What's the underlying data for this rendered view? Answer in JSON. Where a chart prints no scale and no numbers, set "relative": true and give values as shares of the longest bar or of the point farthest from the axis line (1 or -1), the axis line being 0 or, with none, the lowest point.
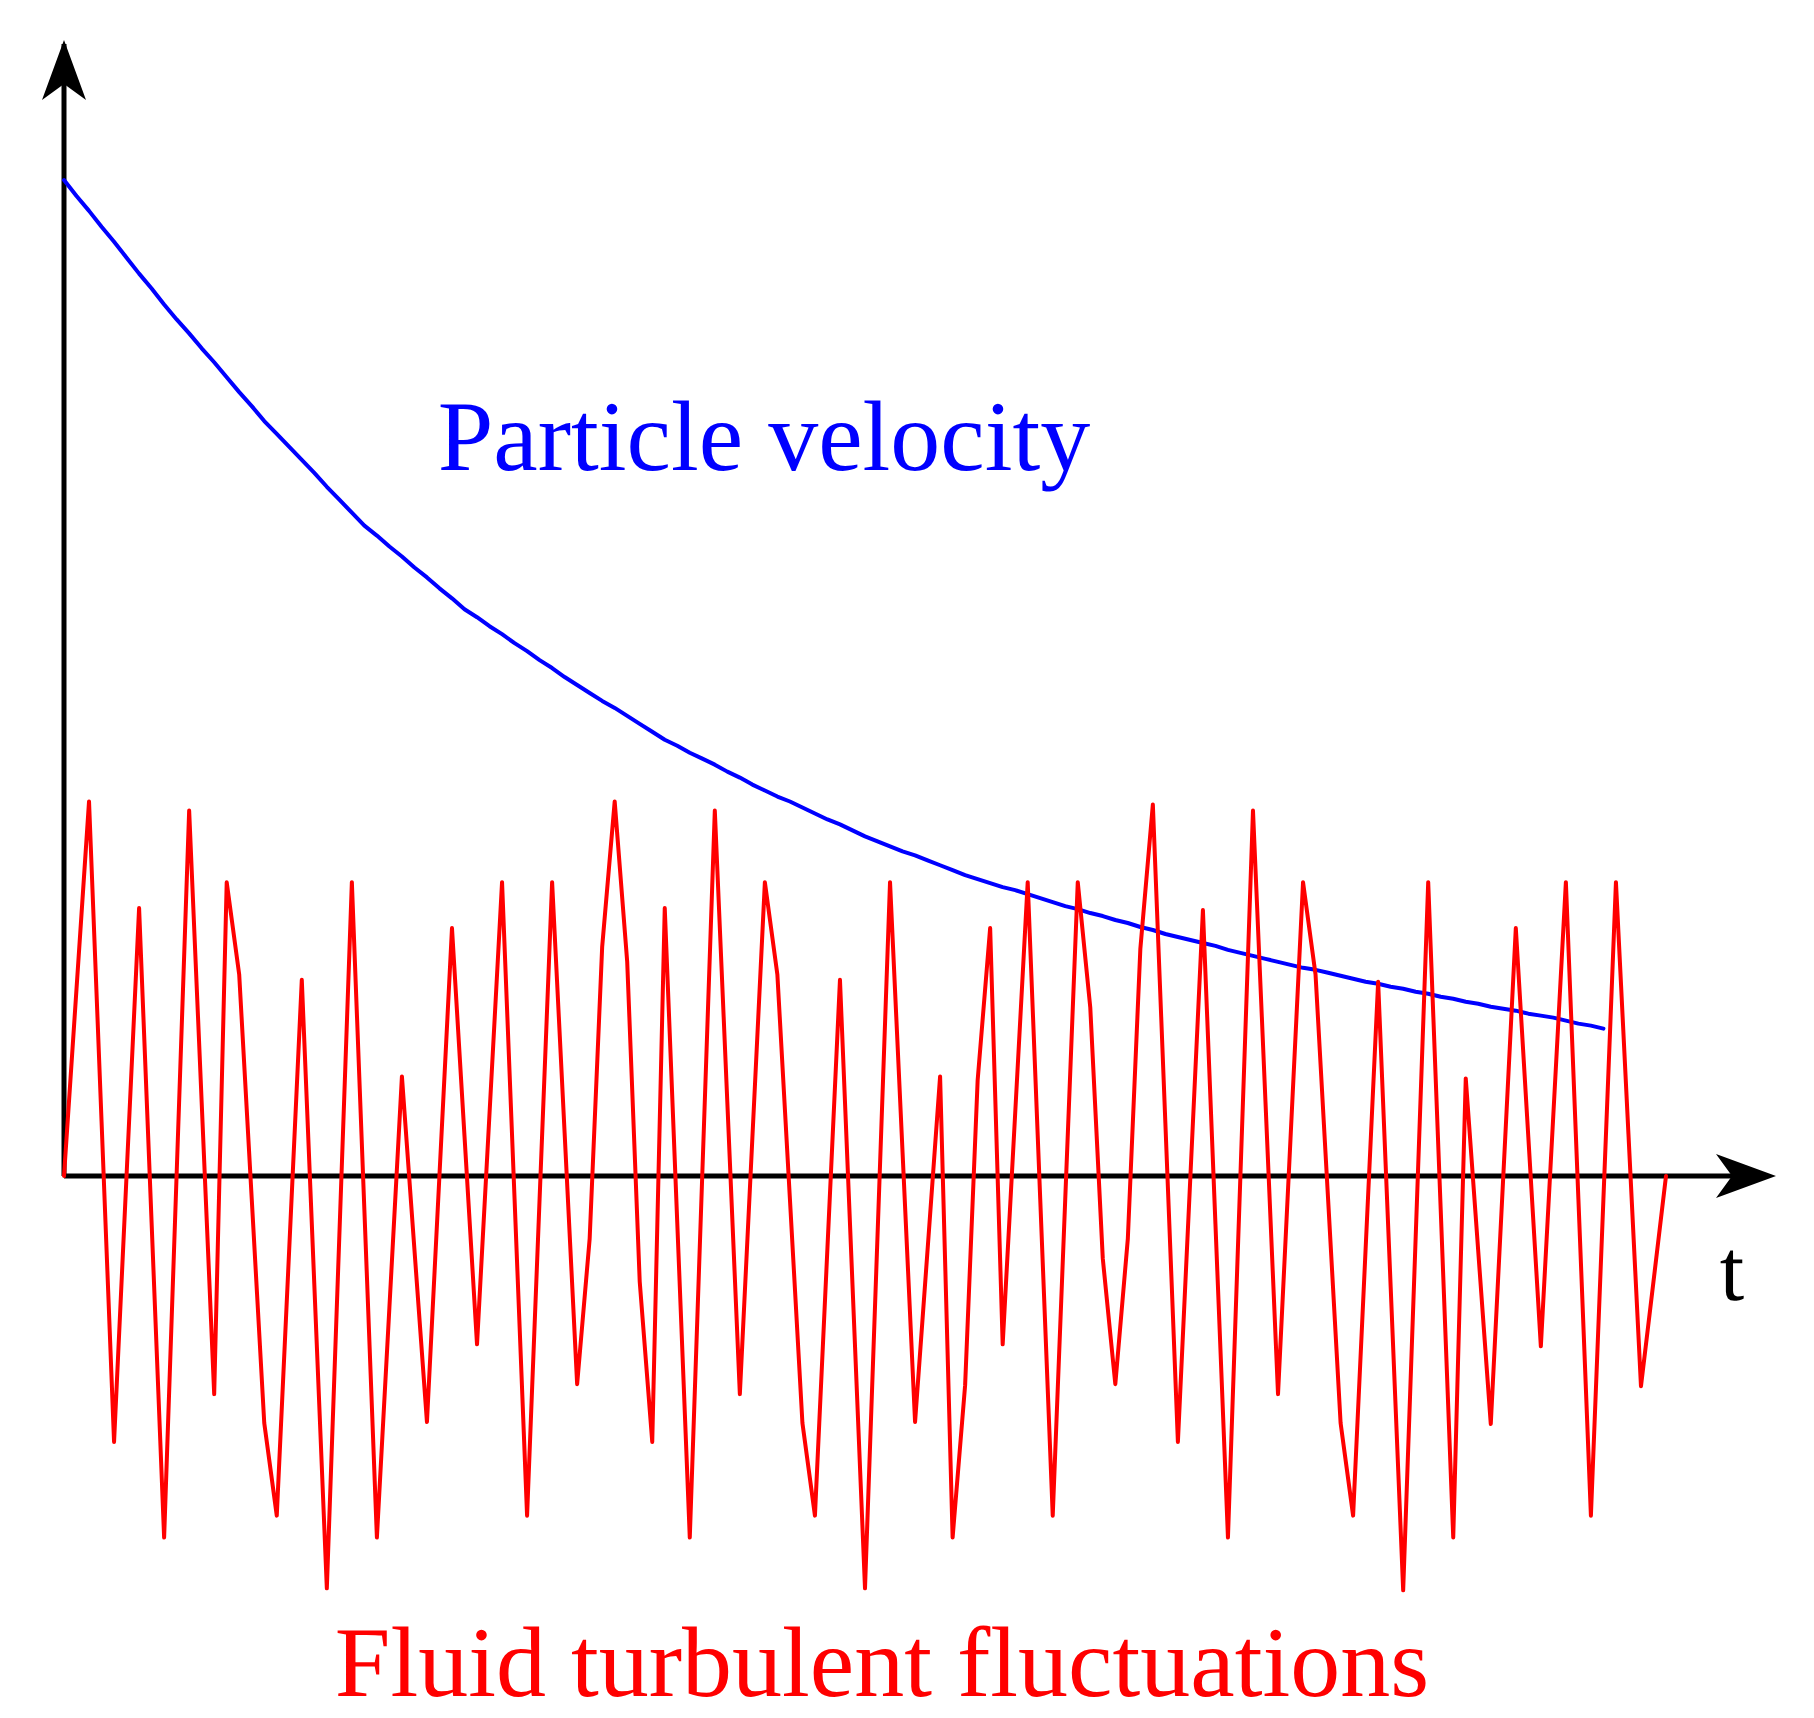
{
  "chart_data": {
    "type": "line",
    "relative": true,
    "xlabel": "t",
    "legend": false,
    "line_style": "solid",
    "categories": [
      null,
      null,
      null,
      null,
      null,
      null,
      null,
      null,
      null,
      null,
      null,
      null,
      null,
      null,
      null,
      null,
      null,
      null,
      null,
      null,
      null,
      null,
      null,
      null,
      null,
      null,
      null,
      null,
      null,
      null,
      null,
      null,
      null,
      null,
      null,
      null,
      null,
      null,
      null,
      null,
      null,
      null,
      null,
      null,
      null,
      null,
      null,
      null,
      null,
      null,
      null,
      null,
      null,
      null,
      null,
      null,
      null,
      null,
      null,
      null,
      null,
      null,
      null,
      null,
      null,
      null,
      null,
      null,
      null,
      null,
      null,
      null,
      null,
      null,
      null,
      null,
      null,
      null,
      null,
      null,
      null,
      null,
      null,
      null,
      null,
      null,
      null,
      null,
      null,
      null,
      null,
      null,
      null,
      null,
      null,
      null,
      null,
      null,
      null,
      null,
      null,
      null,
      null,
      null,
      null,
      null,
      null,
      null,
      null,
      null,
      null,
      null,
      null,
      null,
      null,
      null,
      null,
      null,
      null,
      null,
      null,
      null,
      null,
      null,
      null,
      null,
      null,
      null,
      null
    ],
    "series": [
      {
        "name": "Particle velocity",
        "color": "#0000ff",
        "values": [
          1,
          0.984,
          0.969,
          0.953,
          0.938,
          0.922,
          0.906,
          0.891,
          0.875,
          0.86,
          0.846,
          0.831,
          0.817,
          0.802,
          0.787,
          0.773,
          0.758,
          0.745,
          0.732,
          0.719,
          0.706,
          0.692,
          0.679,
          0.666,
          0.653,
          0.643,
          0.632,
          0.622,
          0.611,
          0.601,
          0.59,
          0.58,
          0.569,
          0.561,
          0.552,
          0.544,
          0.535,
          0.527,
          0.518,
          0.51,
          0.501,
          0.493,
          0.485,
          0.477,
          0.47,
          0.462,
          0.454,
          0.446,
          0.438,
          0.432,
          0.425,
          0.419,
          0.413,
          0.406,
          0.4,
          0.393,
          0.387,
          0.381,
          0.376,
          0.37,
          0.364,
          0.358,
          0.353,
          0.347,
          0.341,
          0.336,
          0.331,
          0.326,
          0.322,
          0.317,
          0.312,
          0.307,
          0.302,
          0.298,
          0.294,
          0.29,
          0.287,
          0.283,
          0.279,
          0.275,
          0.271,
          0.268,
          0.264,
          0.261,
          0.257,
          0.254,
          0.25,
          0.247,
          0.243,
          0.24,
          0.237,
          0.234,
          0.231,
          0.227,
          0.224,
          0.221,
          0.218,
          0.215,
          0.212,
          0.209,
          0.207,
          0.204,
          0.201,
          0.198,
          0.195,
          0.193,
          0.19,
          0.188,
          0.185,
          0.183,
          0.18,
          0.178,
          0.175,
          0.173,
          0.17,
          0.168,
          0.166,
          0.163,
          0.161,
          0.159,
          0.156,
          0.153,
          0.151,
          0.148,
          null,
          null,
          null,
          null,
          null
        ]
      },
      {
        "name": "Fluid turbulent fluctuations",
        "color": "#ff0000",
        "values": [
          0,
          0.188,
          0.376,
          0.055,
          -0.267,
          0.001,
          0.269,
          -0.047,
          -0.363,
          0.002,
          0.367,
          0.074,
          -0.219,
          0.295,
          0.202,
          -0.023,
          -0.248,
          -0.341,
          -0.072,
          0.197,
          -0.109,
          -0.414,
          -0.06,
          0.295,
          -0.034,
          -0.363,
          -0.132,
          0.1,
          -0.074,
          -0.247,
          0.001,
          0.249,
          0.04,
          -0.169,
          0.063,
          0.295,
          -0.023,
          -0.341,
          -0.023,
          0.295,
          0.043,
          -0.209,
          -0.063,
          0.23,
          0.376,
          0.215,
          -0.106,
          -0.267,
          0.269,
          -0.047,
          -0.363,
          0.002,
          0.367,
          0.074,
          -0.219,
          0.038,
          0.295,
          0.202,
          -0.023,
          -0.248,
          -0.341,
          -0.072,
          0.197,
          -0.109,
          -0.414,
          -0.06,
          0.295,
          0.024,
          -0.247,
          -0.074,
          0.1,
          -0.363,
          -0.21,
          0.096,
          0.249,
          -0.169,
          0.063,
          0.295,
          -0.023,
          -0.341,
          -0.023,
          0.295,
          0.169,
          -0.083,
          -0.209,
          -0.063,
          0.228,
          0.373,
          0.053,
          -0.267,
          0,
          0.267,
          -0.048,
          -0.363,
          0.002,
          0.367,
          0.074,
          -0.219,
          0.038,
          0.295,
          0.202,
          -0.023,
          -0.248,
          -0.341,
          -0.073,
          0.195,
          -0.111,
          -0.416,
          -0.061,
          0.295,
          -0.034,
          -0.363,
          0.098,
          -0.076,
          -0.249,
          0,
          0.249,
          0.039,
          -0.171,
          0.062,
          0.295,
          -0.023,
          -0.341,
          -0.023,
          0.295,
          0.042,
          -0.211,
          -0.106,
          0
        ]
      }
    ]
  }
}
